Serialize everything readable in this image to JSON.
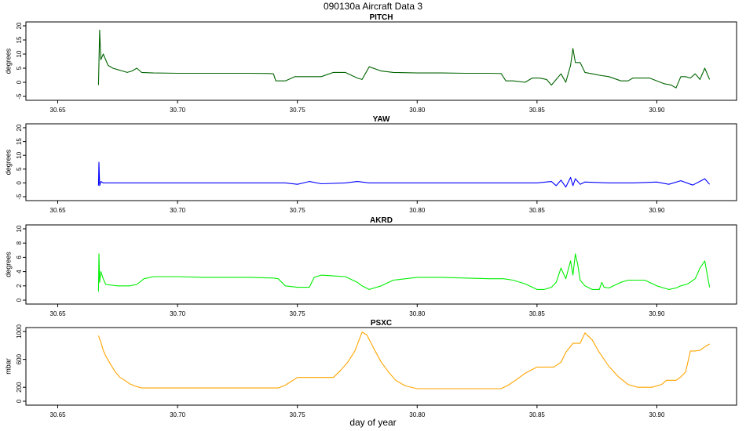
{
  "figure": {
    "title": "090130a   Aircraft Data 3",
    "xlabel": "day of year"
  },
  "chart_data": [
    {
      "type": "line",
      "title": "PITCH",
      "xlabel": "day of year",
      "ylabel": "degrees",
      "color": "#006400",
      "xlim": [
        30.64,
        30.93
      ],
      "ylim": [
        -5,
        20
      ],
      "xticks": [
        "30.65",
        "30.70",
        "30.75",
        "30.80",
        "30.85",
        "30.90"
      ],
      "yticks": [
        "-5",
        "0",
        "5",
        "10",
        "15",
        "20"
      ],
      "grid": false,
      "x": [
        30.667,
        30.6675,
        30.668,
        30.669,
        30.671,
        30.673,
        30.675,
        30.677,
        30.679,
        30.681,
        30.683,
        30.685,
        30.69,
        30.7,
        30.71,
        30.72,
        30.73,
        30.738,
        30.74,
        30.741,
        30.745,
        30.749,
        30.75,
        30.755,
        30.76,
        30.765,
        30.766,
        30.77,
        30.775,
        30.777,
        30.78,
        30.785,
        30.79,
        30.8,
        30.81,
        30.82,
        30.83,
        30.835,
        30.837,
        30.84,
        30.845,
        30.848,
        30.851,
        30.854,
        30.856,
        30.858,
        30.86,
        30.862,
        30.864,
        30.865,
        30.866,
        30.868,
        30.87,
        30.873,
        30.876,
        30.88,
        30.885,
        30.888,
        30.89,
        30.894,
        30.897,
        30.9,
        30.903,
        30.906,
        30.908,
        30.91,
        30.912,
        30.914,
        30.916,
        30.918,
        30.92,
        30.922
      ],
      "y": [
        -1,
        18.5,
        8,
        10,
        6,
        5,
        4.5,
        4,
        3.5,
        4,
        5,
        3.5,
        3.3,
        3.2,
        3.2,
        3.2,
        3.2,
        3.1,
        3,
        0.5,
        0.5,
        2,
        2,
        2,
        2,
        3.5,
        3.5,
        3.5,
        1.5,
        1,
        5.5,
        4,
        3.5,
        3.3,
        3.3,
        3.2,
        3.2,
        3.1,
        0.5,
        0.5,
        0,
        1.5,
        1.5,
        1,
        -1,
        1,
        3,
        0,
        6,
        12,
        7,
        7,
        3.5,
        3,
        2.5,
        2,
        0.5,
        0.5,
        1.5,
        1.5,
        1.5,
        0.5,
        -0.5,
        -1,
        -2,
        2,
        2,
        1.5,
        3,
        1,
        5,
        1
      ]
    },
    {
      "type": "line",
      "title": "YAW",
      "xlabel": "day of year",
      "ylabel": "degrees",
      "color": "#0000ff",
      "xlim": [
        30.64,
        30.93
      ],
      "ylim": [
        -5,
        20
      ],
      "xticks": [
        "30.65",
        "30.70",
        "30.75",
        "30.80",
        "30.85",
        "30.90"
      ],
      "yticks": [
        "-5",
        "0",
        "5",
        "10",
        "15",
        "20"
      ],
      "grid": false,
      "x": [
        30.667,
        30.6672,
        30.6675,
        30.668,
        30.669,
        30.67,
        30.68,
        30.7,
        30.72,
        30.74,
        30.745,
        30.75,
        30.755,
        30.76,
        30.77,
        30.775,
        30.78,
        30.79,
        30.8,
        30.82,
        30.84,
        30.85,
        30.856,
        30.858,
        30.86,
        30.862,
        30.864,
        30.865,
        30.866,
        30.868,
        30.87,
        30.88,
        30.89,
        30.9,
        30.905,
        30.91,
        30.915,
        30.92,
        30.922
      ],
      "y": [
        -1,
        7.5,
        -1,
        0.5,
        0,
        0,
        0,
        0,
        0,
        0,
        0,
        -0.5,
        0.5,
        -0.3,
        0,
        0.5,
        0,
        0,
        0,
        0,
        0,
        0,
        0.5,
        -1,
        1,
        -1.5,
        2,
        -1,
        1.5,
        -0.5,
        0.3,
        0,
        0,
        0.3,
        -0.5,
        0.8,
        -0.8,
        1.5,
        -0.5
      ]
    },
    {
      "type": "line",
      "title": "AKRD",
      "xlabel": "day of year",
      "ylabel": "degrees",
      "color": "#00ee00",
      "xlim": [
        30.64,
        30.93
      ],
      "ylim": [
        0,
        10
      ],
      "xticks": [
        "30.65",
        "30.70",
        "30.75",
        "30.80",
        "30.85",
        "30.90"
      ],
      "yticks": [
        "0",
        "2",
        "4",
        "6",
        "8",
        "10"
      ],
      "grid": false,
      "x": [
        30.667,
        30.6672,
        30.6675,
        30.668,
        30.669,
        30.67,
        30.675,
        30.678,
        30.68,
        30.683,
        30.686,
        30.69,
        30.7,
        30.71,
        30.72,
        30.73,
        30.74,
        30.742,
        30.745,
        30.75,
        30.753,
        30.755,
        30.757,
        30.76,
        30.765,
        30.77,
        30.775,
        30.777,
        30.78,
        30.785,
        30.79,
        30.8,
        30.81,
        30.82,
        30.83,
        30.836,
        30.84,
        30.845,
        30.85,
        30.853,
        30.856,
        30.858,
        30.86,
        30.862,
        30.864,
        30.865,
        30.866,
        30.867,
        30.868,
        30.87,
        30.873,
        30.876,
        30.877,
        30.878,
        30.88,
        30.885,
        30.888,
        30.89,
        30.895,
        30.9,
        30.905,
        30.908,
        30.91,
        30.913,
        30.916,
        30.918,
        30.92,
        30.922
      ],
      "y": [
        1.2,
        6.5,
        2.5,
        4,
        3,
        2.2,
        2,
        2,
        2,
        2.2,
        3,
        3.3,
        3.3,
        3.2,
        3.2,
        3.2,
        3.1,
        3,
        2,
        1.8,
        1.8,
        1.8,
        3.2,
        3.5,
        3.4,
        3.3,
        2.5,
        2,
        1.5,
        2,
        2.8,
        3.2,
        3.2,
        3.1,
        3,
        3,
        2.8,
        2.3,
        1.5,
        1.5,
        1.8,
        2.5,
        4.5,
        3,
        5.5,
        3.5,
        6.5,
        5,
        2.8,
        2,
        1.5,
        1.5,
        2.5,
        1.8,
        1.7,
        2.5,
        2.8,
        2.8,
        2.8,
        2,
        1.5,
        1.7,
        2,
        2.3,
        3,
        4.5,
        5.5,
        1.8
      ]
    },
    {
      "type": "line",
      "title": "PSXC",
      "xlabel": "day of year",
      "ylabel": "mbar",
      "color": "#ffa500",
      "xlim": [
        30.64,
        30.93
      ],
      "ylim": [
        0,
        1000
      ],
      "xticks": [
        "30.65",
        "30.70",
        "30.75",
        "30.80",
        "30.85",
        "30.90"
      ],
      "yticks": [
        "0",
        "200",
        "600",
        "1000"
      ],
      "grid": false,
      "x": [
        30.667,
        30.668,
        30.669,
        30.67,
        30.672,
        30.674,
        30.676,
        30.678,
        30.68,
        30.682,
        30.684,
        30.685,
        30.7,
        30.71,
        30.72,
        30.73,
        30.74,
        30.742,
        30.745,
        30.75,
        30.755,
        30.76,
        30.765,
        30.768,
        30.771,
        30.774,
        30.776,
        30.777,
        30.779,
        30.782,
        30.785,
        30.788,
        30.791,
        30.795,
        30.8,
        30.81,
        30.82,
        30.83,
        30.835,
        30.838,
        30.841,
        30.845,
        30.85,
        30.854,
        30.857,
        30.86,
        30.862,
        30.865,
        30.866,
        30.868,
        30.87,
        30.873,
        30.876,
        30.88,
        30.884,
        30.888,
        30.892,
        30.895,
        30.898,
        30.902,
        30.904,
        30.906,
        30.908,
        30.91,
        30.912,
        30.914,
        30.916,
        30.918,
        30.92,
        30.922
      ],
      "y": [
        940,
        850,
        730,
        650,
        530,
        420,
        340,
        300,
        250,
        220,
        200,
        190,
        190,
        190,
        190,
        190,
        190,
        190,
        230,
        340,
        340,
        340,
        340,
        440,
        560,
        720,
        900,
        990,
        950,
        750,
        560,
        420,
        300,
        220,
        180,
        180,
        180,
        180,
        180,
        230,
        300,
        400,
        490,
        490,
        490,
        560,
        700,
        830,
        830,
        830,
        980,
        880,
        700,
        500,
        350,
        240,
        200,
        200,
        200,
        240,
        300,
        300,
        300,
        350,
        420,
        720,
        720,
        730,
        780,
        820
      ]
    }
  ]
}
